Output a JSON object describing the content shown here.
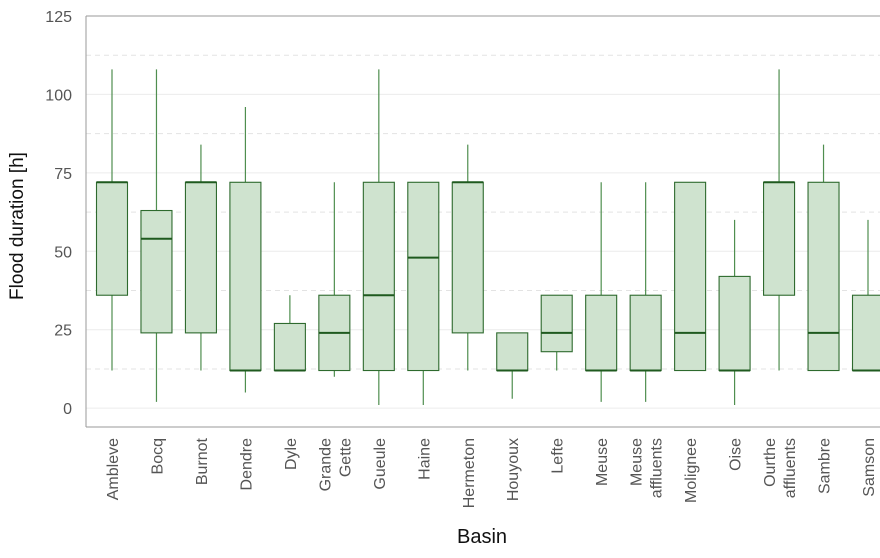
{
  "chart_data": {
    "type": "box",
    "xlabel": "Basin",
    "ylabel": "Flood duration [h]",
    "ylim": [
      -6,
      125
    ],
    "yticks": [
      0,
      25,
      50,
      75,
      100,
      125
    ],
    "categories": [
      "Ambleve",
      "Bocq",
      "Burnot",
      "Dendre",
      "Dyle",
      "Grande Gette",
      "Gueule",
      "Haine",
      "Hermeton",
      "Houyoux",
      "Lefte",
      "Meuse",
      "Meuse affluents",
      "Molignee",
      "Oise",
      "Ourthe affluents",
      "Sambre",
      "Samson"
    ],
    "boxes": [
      {
        "category": "Ambleve",
        "whislo": 12,
        "q1": 36,
        "med": 72,
        "q3": 72,
        "whishi": 108
      },
      {
        "category": "Bocq",
        "whislo": 2,
        "q1": 24,
        "med": 54,
        "q3": 63,
        "whishi": 108
      },
      {
        "category": "Burnot",
        "whislo": 12,
        "q1": 24,
        "med": 72,
        "q3": 72,
        "whishi": 84
      },
      {
        "category": "Dendre",
        "whislo": 5,
        "q1": 12,
        "med": 12,
        "q3": 72,
        "whishi": 96
      },
      {
        "category": "Dyle",
        "whislo": 12,
        "q1": 12,
        "med": 12,
        "q3": 27,
        "whishi": 36
      },
      {
        "category": "Grande Gette",
        "whislo": 10,
        "q1": 12,
        "med": 24,
        "q3": 36,
        "whishi": 72
      },
      {
        "category": "Gueule",
        "whislo": 1,
        "q1": 12,
        "med": 36,
        "q3": 72,
        "whishi": 108
      },
      {
        "category": "Haine",
        "whislo": 1,
        "q1": 12,
        "med": 48,
        "q3": 72,
        "whishi": 72
      },
      {
        "category": "Hermeton",
        "whislo": 12,
        "q1": 24,
        "med": 72,
        "q3": 72,
        "whishi": 84
      },
      {
        "category": "Houyoux",
        "whislo": 3,
        "q1": 12,
        "med": 12,
        "q3": 24,
        "whishi": 24
      },
      {
        "category": "Lefte",
        "whislo": 12,
        "q1": 18,
        "med": 24,
        "q3": 36,
        "whishi": 36
      },
      {
        "category": "Meuse",
        "whislo": 2,
        "q1": 12,
        "med": 12,
        "q3": 36,
        "whishi": 72
      },
      {
        "category": "Meuse affluents",
        "whislo": 2,
        "q1": 12,
        "med": 12,
        "q3": 36,
        "whishi": 72
      },
      {
        "category": "Molignee",
        "whislo": 12,
        "q1": 12,
        "med": 24,
        "q3": 72,
        "whishi": 72
      },
      {
        "category": "Oise",
        "whislo": 1,
        "q1": 12,
        "med": 12,
        "q3": 42,
        "whishi": 60
      },
      {
        "category": "Ourthe affluents",
        "whislo": 12,
        "q1": 36,
        "med": 72,
        "q3": 72,
        "whishi": 108
      },
      {
        "category": "Sambre",
        "whislo": 12,
        "q1": 12,
        "med": 24,
        "q3": 72,
        "whishi": 84
      },
      {
        "category": "Samson",
        "whislo": 12,
        "q1": 12,
        "med": 12,
        "q3": 36,
        "whishi": 60
      }
    ],
    "grid": true,
    "colors": {
      "box_fill": "#cfe3cf",
      "box_edge": "#2e6a2e",
      "median": "#1f5a1f",
      "whisker": "#4f8e4f",
      "grid_major": "#ececec",
      "grid_minor": "#e3e3e3",
      "axis_text": "#555555",
      "frame": "#9a9a9a"
    }
  }
}
